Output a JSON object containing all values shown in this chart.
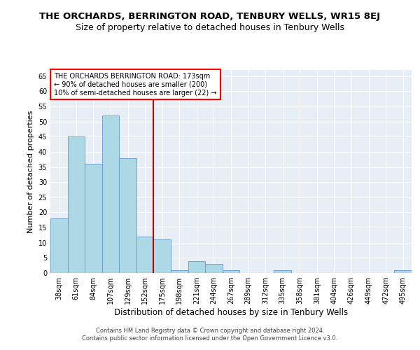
{
  "title": "THE ORCHARDS, BERRINGTON ROAD, TENBURY WELLS, WR15 8EJ",
  "subtitle": "Size of property relative to detached houses in Tenbury Wells",
  "xlabel": "Distribution of detached houses by size in Tenbury Wells",
  "ylabel": "Number of detached properties",
  "categories": [
    "38sqm",
    "61sqm",
    "84sqm",
    "107sqm",
    "129sqm",
    "152sqm",
    "175sqm",
    "198sqm",
    "221sqm",
    "244sqm",
    "267sqm",
    "289sqm",
    "312sqm",
    "335sqm",
    "358sqm",
    "381sqm",
    "404sqm",
    "426sqm",
    "449sqm",
    "472sqm",
    "495sqm"
  ],
  "values": [
    18,
    45,
    36,
    52,
    38,
    12,
    11,
    1,
    4,
    3,
    1,
    0,
    0,
    1,
    0,
    0,
    0,
    0,
    0,
    0,
    1
  ],
  "bar_color": "#add8e6",
  "bar_edge_color": "#6699cc",
  "vline_x": 6,
  "vline_color": "#cc0000",
  "annotation_box_text": "THE ORCHARDS BERRINGTON ROAD: 173sqm\n← 90% of detached houses are smaller (200)\n10% of semi-detached houses are larger (22) →",
  "ylim": [
    0,
    67
  ],
  "yticks": [
    0,
    5,
    10,
    15,
    20,
    25,
    30,
    35,
    40,
    45,
    50,
    55,
    60,
    65
  ],
  "background_color": "#e8eef5",
  "grid_color": "#ffffff",
  "footnote": "Contains HM Land Registry data © Crown copyright and database right 2024.\nContains public sector information licensed under the Open Government Licence v3.0.",
  "title_fontsize": 9.5,
  "subtitle_fontsize": 9,
  "xlabel_fontsize": 8.5,
  "ylabel_fontsize": 8,
  "tick_fontsize": 7,
  "footnote_fontsize": 6,
  "annotation_fontsize": 7
}
